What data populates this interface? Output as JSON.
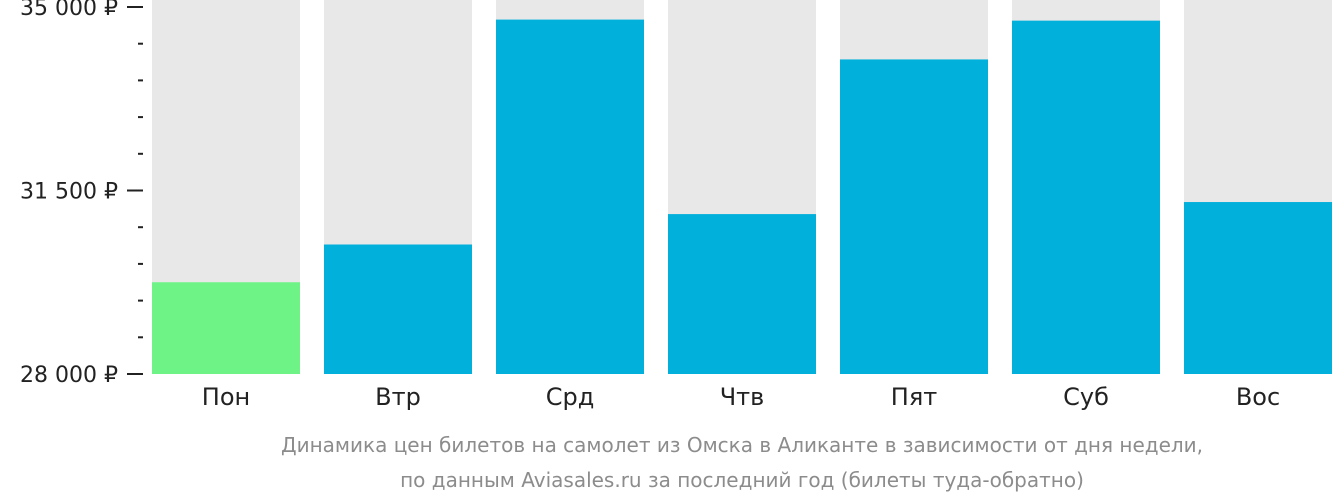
{
  "chart_data": {
    "type": "bar",
    "categories": [
      "Пон",
      "Втр",
      "Срд",
      "Чтв",
      "Пят",
      "Суб",
      "Вос"
    ],
    "values": [
      29750,
      30470,
      34760,
      31050,
      34000,
      34740,
      31280
    ],
    "ylim": [
      28000,
      35000
    ],
    "y_ticks": [
      {
        "value": 28000,
        "label": "28 000 ₽"
      },
      {
        "value": 31500,
        "label": "31 500 ₽"
      },
      {
        "value": 35000,
        "label": "35 000 ₽"
      }
    ],
    "minor_tick_step": 700,
    "caption_lines": [
      "Динамика цен билетов на самолет из Омска в Аликанте в зависимости от дня недели,",
      "по данным Aviasales.ru за последний год (билеты туда-обратно)"
    ],
    "grid": false,
    "legend": "none",
    "colors": {
      "bar": "#02b0dc",
      "bar_min": "#6ef486",
      "bar_track": "#e8e8e8",
      "axis": "#222222",
      "caption": "#8c8c8c"
    }
  }
}
